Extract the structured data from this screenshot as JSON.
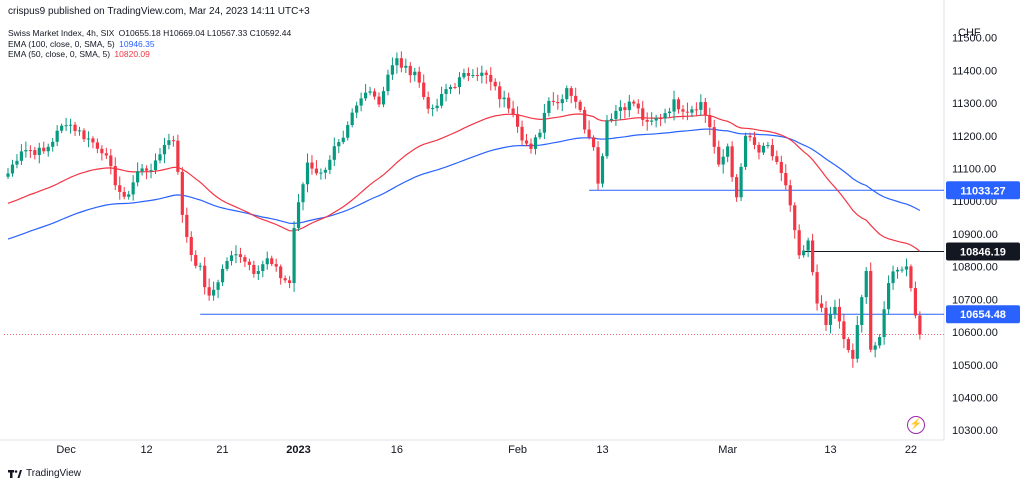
{
  "header": {
    "publisher": "crispus9 published on TradingView.com, Mar 24, 2023 14:11 UTC+3"
  },
  "legend": {
    "main": {
      "label": "Swiss Market Index, 4h, SIX",
      "ohlc": "O10655.18 H10669.04 L10567.33 C10592.44"
    },
    "ema100": {
      "label": "EMA (100, close, 0, SMA, 5)",
      "value": "10946.35",
      "color": "#2962ff"
    },
    "ema50": {
      "label": "EMA (50, close, 0, SMA, 5)",
      "value": "10820.09",
      "color": "#f23645"
    }
  },
  "footer": {
    "brand": "TradingView"
  },
  "colors": {
    "up": "#089981",
    "down": "#f23645",
    "ema100": "#2962ff",
    "ema50": "#f23645",
    "hline": "#2962ff"
  },
  "chart_data": {
    "type": "candlestick",
    "currency": "CHF",
    "ylim": [
      10270,
      11560
    ],
    "y_ticks": [
      11500,
      11400,
      11300,
      11200,
      11100,
      11000,
      10900,
      10800,
      10700,
      10600,
      10500,
      10400,
      10300
    ],
    "y_tick_labels": [
      "11500.00",
      "11400.00",
      "11300.00",
      "11200.00",
      "11100.00",
      "11000.00",
      "10900.00",
      "10800.00",
      "10700.00",
      "10600.00",
      "10500.00",
      "10400.00",
      "10300.00"
    ],
    "x_labels": [
      "Dec",
      "12",
      "21",
      "2023",
      "16",
      "Feb",
      "13",
      "Mar",
      "13",
      "22"
    ],
    "x_label_index": [
      13,
      31,
      48,
      65,
      87,
      114,
      133,
      161,
      184,
      202
    ],
    "num_bars": 205,
    "x_start": "Nov 23, 2022",
    "horizontal_lines": [
      {
        "value": 11033.27,
        "label": "11033.27",
        "color": "#2962ff",
        "from_index": 130
      },
      {
        "value": 10846.19,
        "label": "10846.19",
        "color": "#131722",
        "from_index": 178
      },
      {
        "value": 10654.48,
        "label": "10654.48",
        "color": "#2962ff",
        "from_index": 43
      }
    ],
    "last_close": 10592.44,
    "anchors": [
      [
        0,
        11085
      ],
      [
        3,
        11160
      ],
      [
        8,
        11150
      ],
      [
        13,
        11245
      ],
      [
        17,
        11200
      ],
      [
        21,
        11160
      ],
      [
        24,
        11060
      ],
      [
        26,
        11000
      ],
      [
        29,
        11090
      ],
      [
        33,
        11110
      ],
      [
        35,
        11180
      ],
      [
        37,
        11190
      ],
      [
        38,
        11100
      ],
      [
        39,
        10950
      ],
      [
        41,
        10840
      ],
      [
        43,
        10790
      ],
      [
        45,
        10700
      ],
      [
        47,
        10760
      ],
      [
        49,
        10820
      ],
      [
        52,
        10840
      ],
      [
        55,
        10790
      ],
      [
        58,
        10820
      ],
      [
        61,
        10770
      ],
      [
        63,
        10750
      ],
      [
        64,
        10920
      ],
      [
        67,
        11120
      ],
      [
        70,
        11080
      ],
      [
        73,
        11160
      ],
      [
        75,
        11180
      ],
      [
        77,
        11260
      ],
      [
        79,
        11310
      ],
      [
        81,
        11350
      ],
      [
        83,
        11300
      ],
      [
        85,
        11390
      ],
      [
        87,
        11430
      ],
      [
        89,
        11400
      ],
      [
        91,
        11400
      ],
      [
        93,
        11320
      ],
      [
        95,
        11270
      ],
      [
        98,
        11340
      ],
      [
        101,
        11370
      ],
      [
        104,
        11400
      ],
      [
        107,
        11380
      ],
      [
        110,
        11320
      ],
      [
        113,
        11280
      ],
      [
        115,
        11200
      ],
      [
        117,
        11150
      ],
      [
        119,
        11220
      ],
      [
        121,
        11320
      ],
      [
        123,
        11300
      ],
      [
        125,
        11350
      ],
      [
        127,
        11310
      ],
      [
        129,
        11230
      ],
      [
        131,
        11180
      ],
      [
        132,
        11050
      ],
      [
        134,
        11250
      ],
      [
        137,
        11290
      ],
      [
        140,
        11300
      ],
      [
        143,
        11230
      ],
      [
        146,
        11260
      ],
      [
        149,
        11300
      ],
      [
        152,
        11280
      ],
      [
        155,
        11300
      ],
      [
        157,
        11230
      ],
      [
        159,
        11100
      ],
      [
        161,
        11170
      ],
      [
        163,
        11000
      ],
      [
        165,
        11200
      ],
      [
        168,
        11150
      ],
      [
        170,
        11160
      ],
      [
        172,
        11120
      ],
      [
        174,
        11040
      ],
      [
        176,
        10910
      ],
      [
        177,
        10820
      ],
      [
        179,
        10870
      ],
      [
        181,
        10700
      ],
      [
        183,
        10620
      ],
      [
        185,
        10680
      ],
      [
        187,
        10570
      ],
      [
        189,
        10520
      ],
      [
        191,
        10700
      ],
      [
        192,
        10800
      ],
      [
        193,
        10550
      ],
      [
        195,
        10570
      ],
      [
        197,
        10760
      ],
      [
        199,
        10800
      ],
      [
        201,
        10800
      ],
      [
        202,
        10740
      ],
      [
        204,
        10590
      ]
    ]
  }
}
